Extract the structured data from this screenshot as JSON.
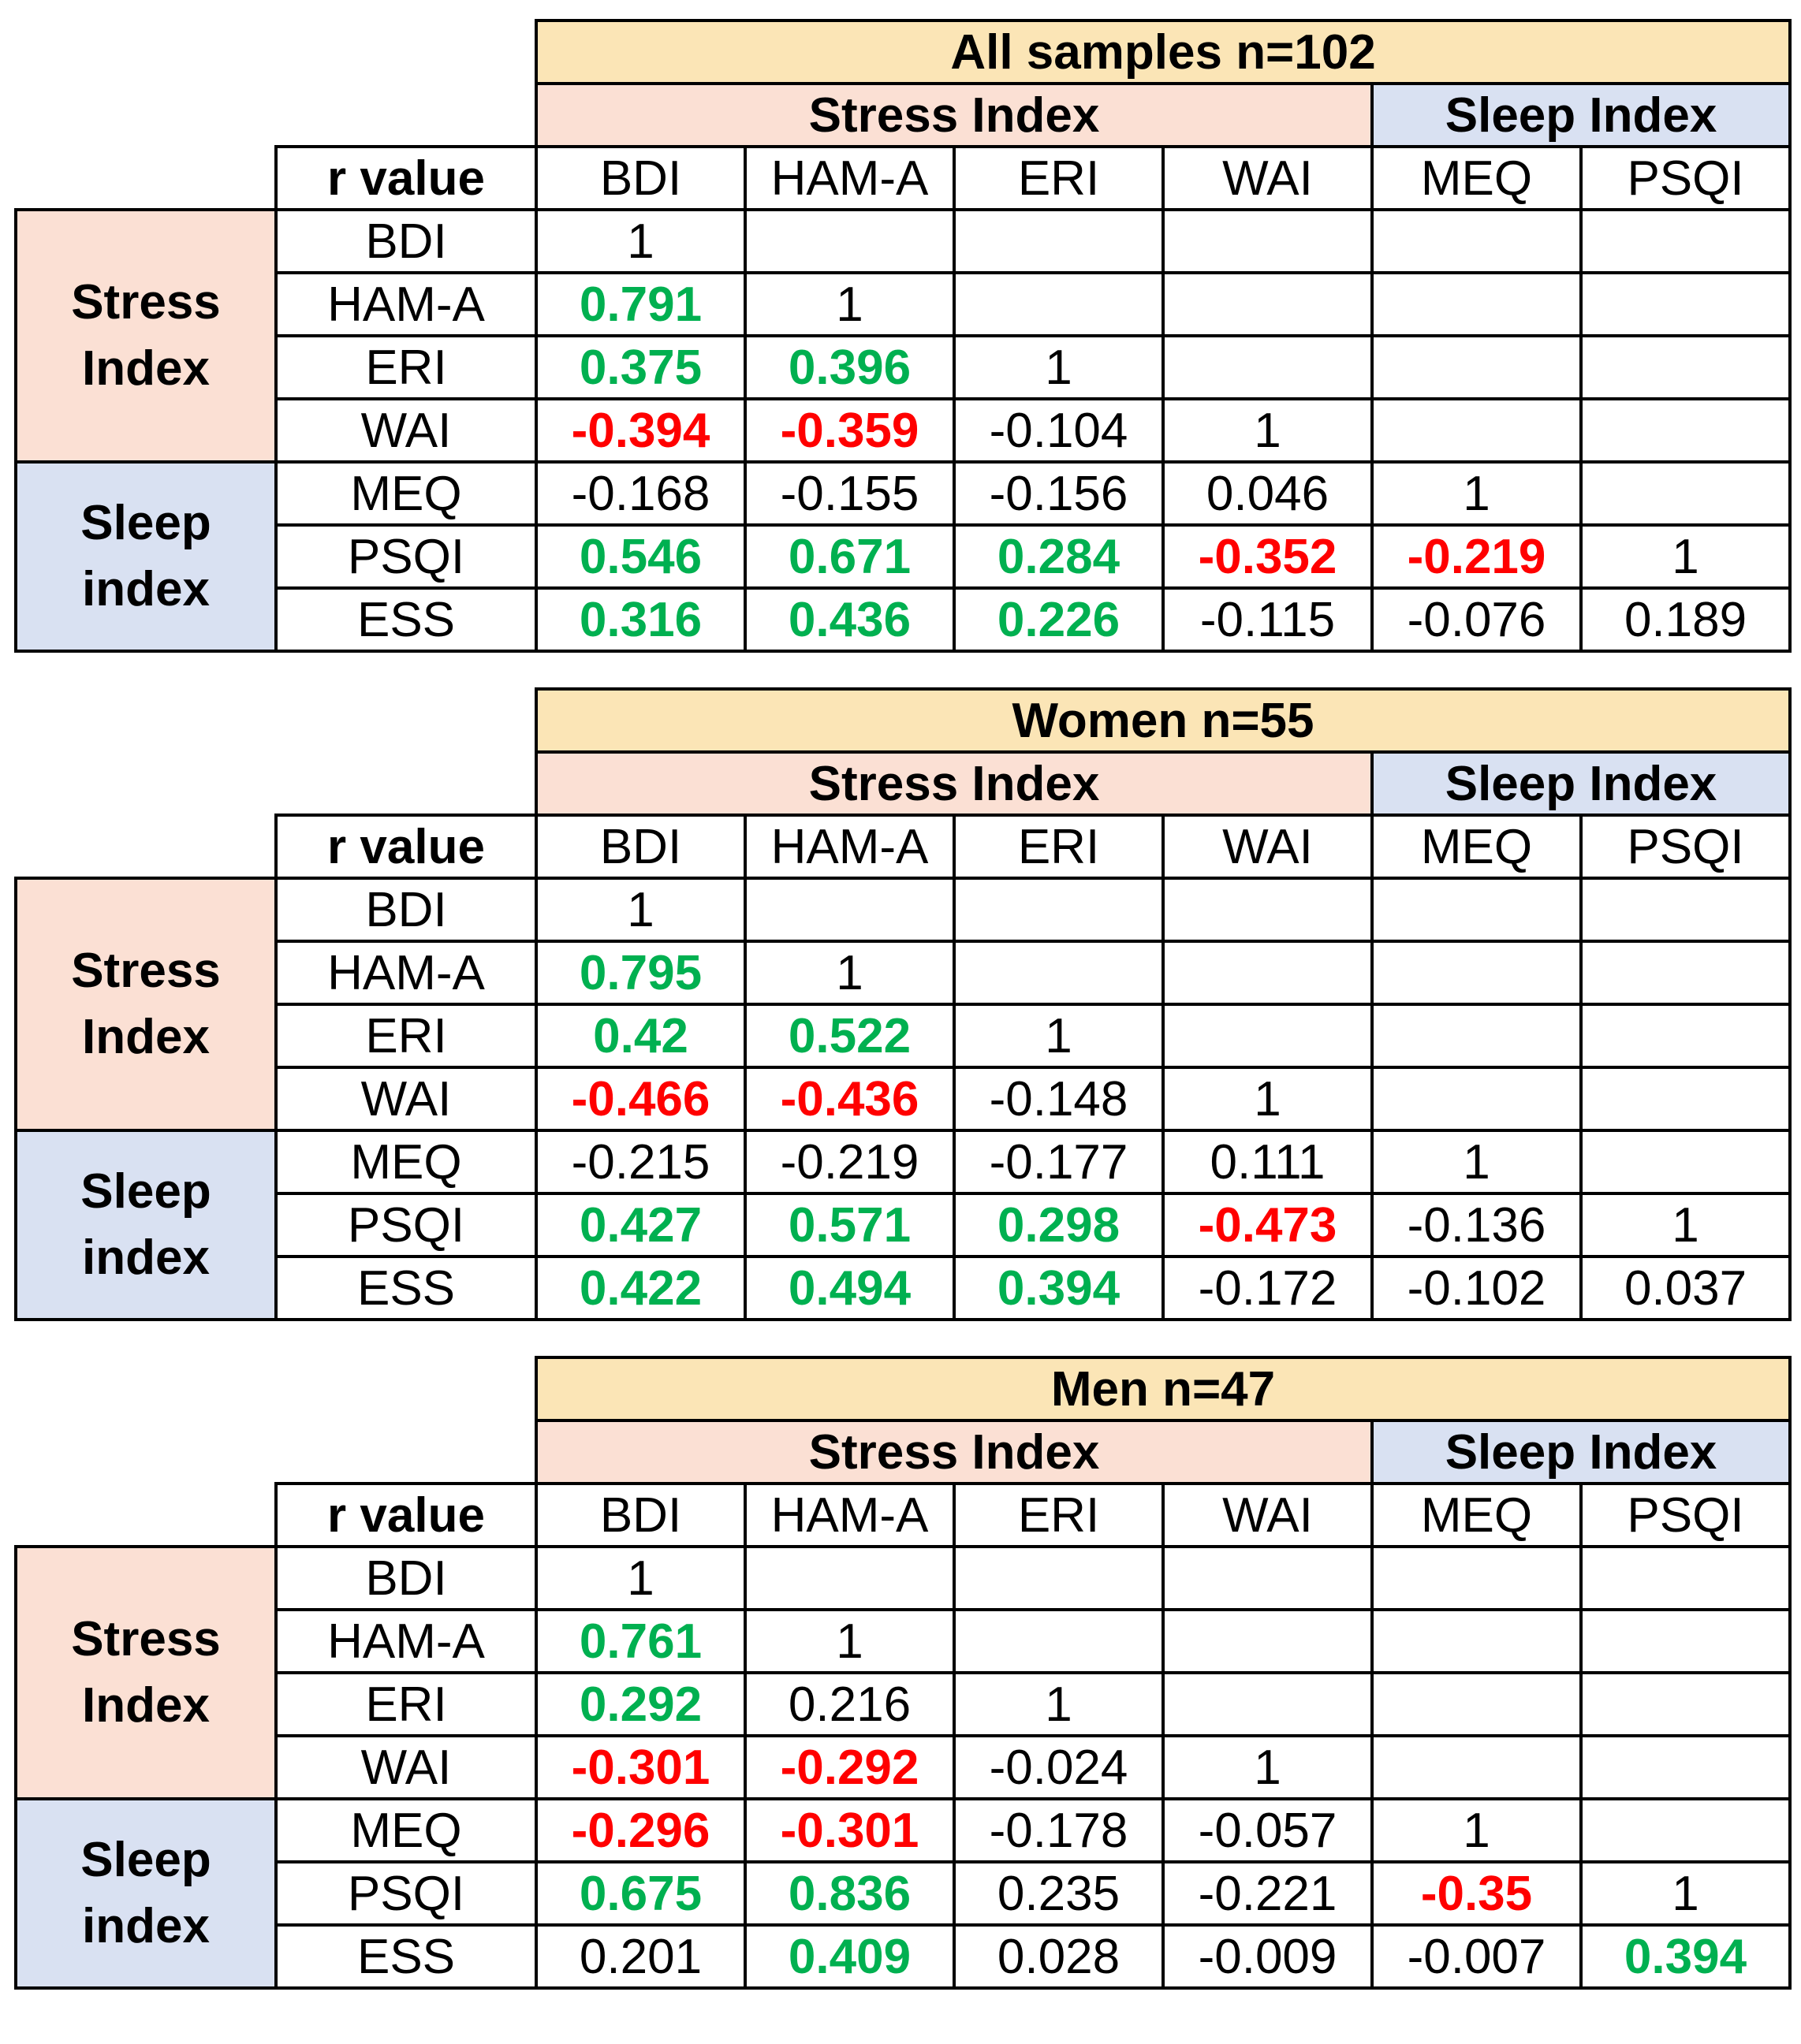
{
  "colors": {
    "positive_significant": "#00b050",
    "negative_significant": "#ff0000",
    "title_fill": "#fbe5b6",
    "stress_fill": "#fbe0d4",
    "sleep_fill": "#d9e1f2"
  },
  "headers": {
    "stress": "Stress Index",
    "sleep": "Sleep Index",
    "corner": "r value",
    "group_stress": "Stress Index",
    "group_sleep": "Sleep index",
    "columns": [
      "BDI",
      "HAM-A",
      "ERI",
      "WAI",
      "MEQ",
      "PSQI"
    ],
    "rows": [
      "BDI",
      "HAM-A",
      "ERI",
      "WAI",
      "MEQ",
      "PSQI",
      "ESS"
    ]
  },
  "chart_data": [
    {
      "type": "table",
      "title": "All samples n=102",
      "rows": [
        [
          {
            "v": "1",
            "s": ""
          },
          {
            "v": "",
            "s": ""
          },
          {
            "v": "",
            "s": ""
          },
          {
            "v": "",
            "s": ""
          },
          {
            "v": "",
            "s": ""
          },
          {
            "v": "",
            "s": ""
          }
        ],
        [
          {
            "v": "0.791",
            "s": "pos"
          },
          {
            "v": "1",
            "s": ""
          },
          {
            "v": "",
            "s": ""
          },
          {
            "v": "",
            "s": ""
          },
          {
            "v": "",
            "s": ""
          },
          {
            "v": "",
            "s": ""
          }
        ],
        [
          {
            "v": "0.375",
            "s": "pos"
          },
          {
            "v": "0.396",
            "s": "pos"
          },
          {
            "v": "1",
            "s": ""
          },
          {
            "v": "",
            "s": ""
          },
          {
            "v": "",
            "s": ""
          },
          {
            "v": "",
            "s": ""
          }
        ],
        [
          {
            "v": "-0.394",
            "s": "neg"
          },
          {
            "v": "-0.359",
            "s": "neg"
          },
          {
            "v": "-0.104",
            "s": ""
          },
          {
            "v": "1",
            "s": ""
          },
          {
            "v": "",
            "s": ""
          },
          {
            "v": "",
            "s": ""
          }
        ],
        [
          {
            "v": "-0.168",
            "s": ""
          },
          {
            "v": "-0.155",
            "s": ""
          },
          {
            "v": "-0.156",
            "s": ""
          },
          {
            "v": "0.046",
            "s": ""
          },
          {
            "v": "1",
            "s": ""
          },
          {
            "v": "",
            "s": ""
          }
        ],
        [
          {
            "v": "0.546",
            "s": "pos"
          },
          {
            "v": "0.671",
            "s": "pos"
          },
          {
            "v": "0.284",
            "s": "pos"
          },
          {
            "v": "-0.352",
            "s": "neg"
          },
          {
            "v": "-0.219",
            "s": "neg"
          },
          {
            "v": "1",
            "s": ""
          }
        ],
        [
          {
            "v": "0.316",
            "s": "pos"
          },
          {
            "v": "0.436",
            "s": "pos"
          },
          {
            "v": "0.226",
            "s": "pos"
          },
          {
            "v": "-0.115",
            "s": ""
          },
          {
            "v": "-0.076",
            "s": ""
          },
          {
            "v": "0.189",
            "s": ""
          }
        ]
      ]
    },
    {
      "type": "table",
      "title": "Women n=55",
      "rows": [
        [
          {
            "v": "1",
            "s": ""
          },
          {
            "v": "",
            "s": ""
          },
          {
            "v": "",
            "s": ""
          },
          {
            "v": "",
            "s": ""
          },
          {
            "v": "",
            "s": ""
          },
          {
            "v": "",
            "s": ""
          }
        ],
        [
          {
            "v": "0.795",
            "s": "pos"
          },
          {
            "v": "1",
            "s": ""
          },
          {
            "v": "",
            "s": ""
          },
          {
            "v": "",
            "s": ""
          },
          {
            "v": "",
            "s": ""
          },
          {
            "v": "",
            "s": ""
          }
        ],
        [
          {
            "v": "0.42",
            "s": "pos"
          },
          {
            "v": "0.522",
            "s": "pos"
          },
          {
            "v": "1",
            "s": ""
          },
          {
            "v": "",
            "s": ""
          },
          {
            "v": "",
            "s": ""
          },
          {
            "v": "",
            "s": ""
          }
        ],
        [
          {
            "v": "-0.466",
            "s": "neg"
          },
          {
            "v": "-0.436",
            "s": "neg"
          },
          {
            "v": "-0.148",
            "s": ""
          },
          {
            "v": "1",
            "s": ""
          },
          {
            "v": "",
            "s": ""
          },
          {
            "v": "",
            "s": ""
          }
        ],
        [
          {
            "v": "-0.215",
            "s": ""
          },
          {
            "v": "-0.219",
            "s": ""
          },
          {
            "v": "-0.177",
            "s": ""
          },
          {
            "v": "0.111",
            "s": ""
          },
          {
            "v": "1",
            "s": ""
          },
          {
            "v": "",
            "s": ""
          }
        ],
        [
          {
            "v": "0.427",
            "s": "pos"
          },
          {
            "v": "0.571",
            "s": "pos"
          },
          {
            "v": "0.298",
            "s": "pos"
          },
          {
            "v": "-0.473",
            "s": "neg"
          },
          {
            "v": "-0.136",
            "s": ""
          },
          {
            "v": "1",
            "s": ""
          }
        ],
        [
          {
            "v": "0.422",
            "s": "pos"
          },
          {
            "v": "0.494",
            "s": "pos"
          },
          {
            "v": "0.394",
            "s": "pos"
          },
          {
            "v": "-0.172",
            "s": ""
          },
          {
            "v": "-0.102",
            "s": ""
          },
          {
            "v": "0.037",
            "s": ""
          }
        ]
      ]
    },
    {
      "type": "table",
      "title": "Men n=47",
      "rows": [
        [
          {
            "v": "1",
            "s": ""
          },
          {
            "v": "",
            "s": ""
          },
          {
            "v": "",
            "s": ""
          },
          {
            "v": "",
            "s": ""
          },
          {
            "v": "",
            "s": ""
          },
          {
            "v": "",
            "s": ""
          }
        ],
        [
          {
            "v": "0.761",
            "s": "pos"
          },
          {
            "v": "1",
            "s": ""
          },
          {
            "v": "",
            "s": ""
          },
          {
            "v": "",
            "s": ""
          },
          {
            "v": "",
            "s": ""
          },
          {
            "v": "",
            "s": ""
          }
        ],
        [
          {
            "v": "0.292",
            "s": "pos"
          },
          {
            "v": "0.216",
            "s": ""
          },
          {
            "v": "1",
            "s": ""
          },
          {
            "v": "",
            "s": ""
          },
          {
            "v": "",
            "s": ""
          },
          {
            "v": "",
            "s": ""
          }
        ],
        [
          {
            "v": "-0.301",
            "s": "neg"
          },
          {
            "v": "-0.292",
            "s": "neg"
          },
          {
            "v": "-0.024",
            "s": ""
          },
          {
            "v": "1",
            "s": ""
          },
          {
            "v": "",
            "s": ""
          },
          {
            "v": "",
            "s": ""
          }
        ],
        [
          {
            "v": "-0.296",
            "s": "neg"
          },
          {
            "v": "-0.301",
            "s": "neg"
          },
          {
            "v": "-0.178",
            "s": ""
          },
          {
            "v": "-0.057",
            "s": ""
          },
          {
            "v": "1",
            "s": ""
          },
          {
            "v": "",
            "s": ""
          }
        ],
        [
          {
            "v": "0.675",
            "s": "pos"
          },
          {
            "v": "0.836",
            "s": "pos"
          },
          {
            "v": "0.235",
            "s": ""
          },
          {
            "v": "-0.221",
            "s": ""
          },
          {
            "v": "-0.35",
            "s": "neg"
          },
          {
            "v": "1",
            "s": ""
          }
        ],
        [
          {
            "v": "0.201",
            "s": ""
          },
          {
            "v": "0.409",
            "s": "pos"
          },
          {
            "v": "0.028",
            "s": ""
          },
          {
            "v": "-0.009",
            "s": ""
          },
          {
            "v": "-0.007",
            "s": ""
          },
          {
            "v": "0.394",
            "s": "pos"
          }
        ]
      ]
    }
  ]
}
